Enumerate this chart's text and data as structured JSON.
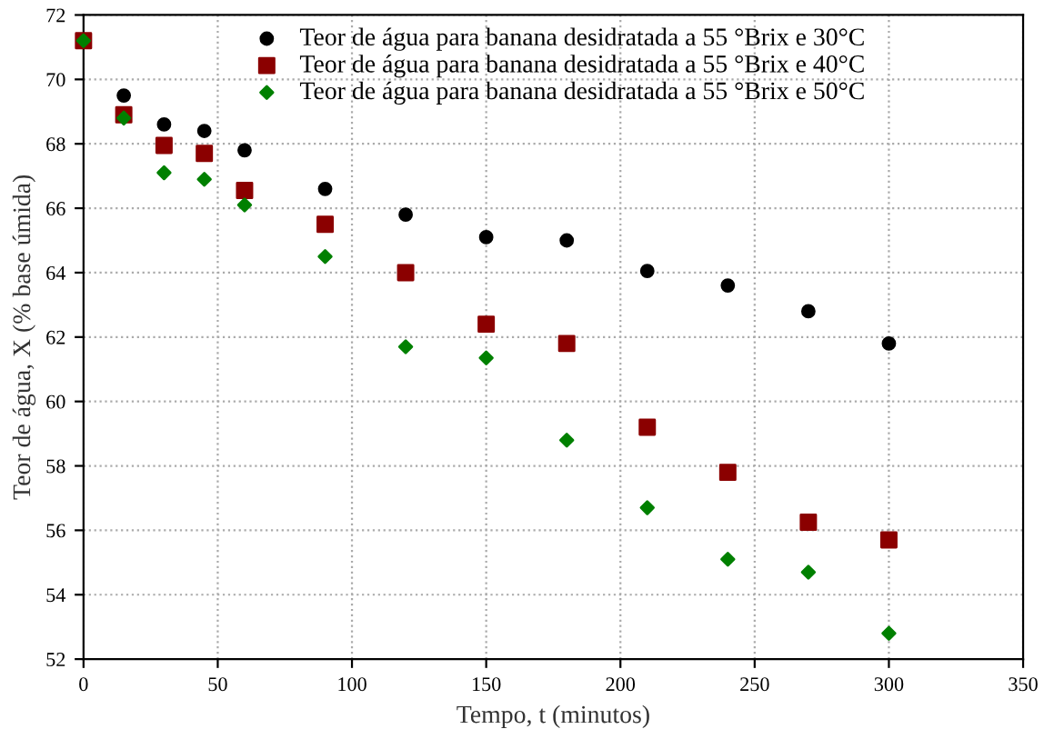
{
  "chart_data": {
    "type": "scatter",
    "xlabel": "Tempo, t (minutos)",
    "ylabel": "Teor de água, X (% base úmida)",
    "x": [
      0,
      15,
      30,
      45,
      60,
      90,
      120,
      150,
      180,
      210,
      240,
      270,
      300
    ],
    "series": [
      {
        "name": "Teor de água para banana desidratada a 55 °Brix e 30°C",
        "color": "#000000",
        "marker": "circle",
        "values": [
          null,
          69.5,
          68.6,
          68.4,
          67.8,
          66.6,
          65.8,
          65.1,
          65.0,
          64.05,
          63.6,
          62.8,
          61.8
        ]
      },
      {
        "name": "Teor de água para banana desidratada a 55 °Brix e 40°C",
        "color": "#8b0000",
        "marker": "square",
        "values": [
          71.2,
          68.9,
          67.95,
          67.7,
          66.55,
          65.5,
          64.0,
          62.4,
          61.8,
          59.2,
          57.8,
          56.25,
          55.7
        ]
      },
      {
        "name": "Teor de água para banana desidratada a 55 °Brix e 50°C",
        "color": "#008000",
        "marker": "diamond",
        "values": [
          71.2,
          68.8,
          67.1,
          66.9,
          66.1,
          64.5,
          61.7,
          61.35,
          58.8,
          56.7,
          55.1,
          54.7,
          52.8
        ]
      }
    ],
    "xlim": [
      0,
      350
    ],
    "xticks": [
      0,
      50,
      100,
      150,
      200,
      250,
      300,
      350
    ],
    "ylim": [
      52,
      72
    ],
    "yticks": [
      52,
      54,
      56,
      58,
      60,
      62,
      64,
      66,
      68,
      70,
      72
    ],
    "grid": true,
    "legend": "top"
  }
}
